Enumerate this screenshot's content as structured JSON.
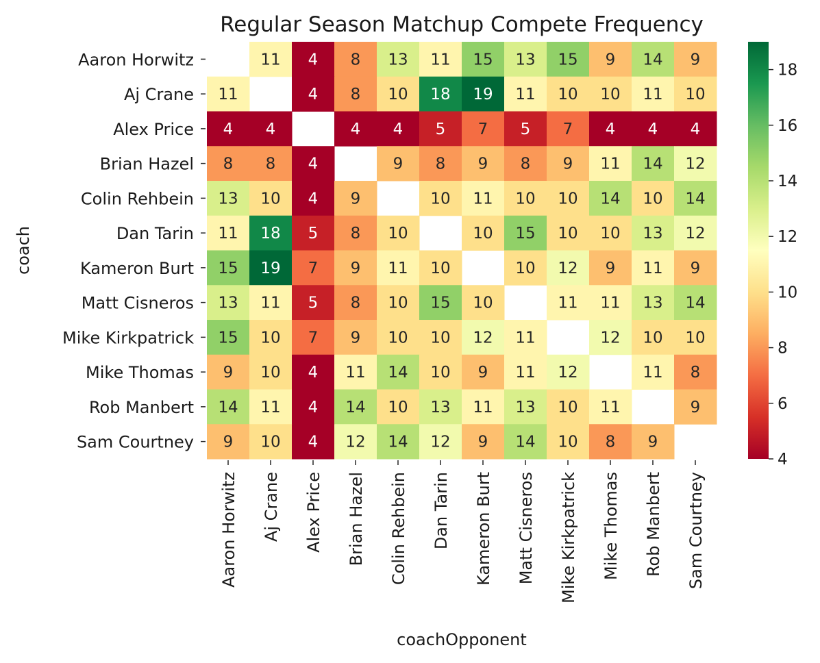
{
  "chart_data": {
    "type": "heatmap",
    "title": "Regular Season Matchup Compete Frequency",
    "xlabel": "coachOpponent",
    "ylabel": "coach",
    "rows": [
      "Aaron Horwitz",
      "Aj Crane",
      "Alex Price",
      "Brian Hazel",
      "Colin Rehbein",
      "Dan Tarin",
      "Kameron Burt",
      "Matt Cisneros",
      "Mike Kirkpatrick",
      "Mike Thomas",
      "Rob Manbert",
      "Sam Courtney"
    ],
    "columns": [
      "Aaron Horwitz",
      "Aj Crane",
      "Alex Price",
      "Brian Hazel",
      "Colin Rehbein",
      "Dan Tarin",
      "Kameron Burt",
      "Matt Cisneros",
      "Mike Kirkpatrick",
      "Mike Thomas",
      "Rob Manbert",
      "Sam Courtney"
    ],
    "values": [
      [
        null,
        11,
        4,
        8,
        13,
        11,
        15,
        13,
        15,
        9,
        14,
        9
      ],
      [
        11,
        null,
        4,
        8,
        10,
        18,
        19,
        11,
        10,
        10,
        11,
        10
      ],
      [
        4,
        4,
        null,
        4,
        4,
        5,
        7,
        5,
        7,
        4,
        4,
        4
      ],
      [
        8,
        8,
        4,
        null,
        9,
        8,
        9,
        8,
        9,
        11,
        14,
        12
      ],
      [
        13,
        10,
        4,
        9,
        null,
        10,
        11,
        10,
        10,
        14,
        10,
        14
      ],
      [
        11,
        18,
        5,
        8,
        10,
        null,
        10,
        15,
        10,
        10,
        13,
        12
      ],
      [
        15,
        19,
        7,
        9,
        11,
        10,
        null,
        10,
        12,
        9,
        11,
        9
      ],
      [
        13,
        11,
        5,
        8,
        10,
        15,
        10,
        null,
        11,
        11,
        13,
        14
      ],
      [
        15,
        10,
        7,
        9,
        10,
        10,
        12,
        11,
        null,
        12,
        10,
        10
      ],
      [
        9,
        10,
        4,
        11,
        14,
        10,
        9,
        11,
        12,
        null,
        11,
        8
      ],
      [
        14,
        11,
        4,
        14,
        10,
        13,
        11,
        13,
        10,
        11,
        null,
        9
      ],
      [
        9,
        10,
        4,
        12,
        14,
        12,
        9,
        14,
        10,
        8,
        9,
        null
      ]
    ],
    "colorbar": {
      "min": 4,
      "max": 19,
      "ticks": [
        4,
        6,
        8,
        10,
        12,
        14,
        16,
        18
      ]
    },
    "colormap": "RdYlGn",
    "grid": false
  }
}
